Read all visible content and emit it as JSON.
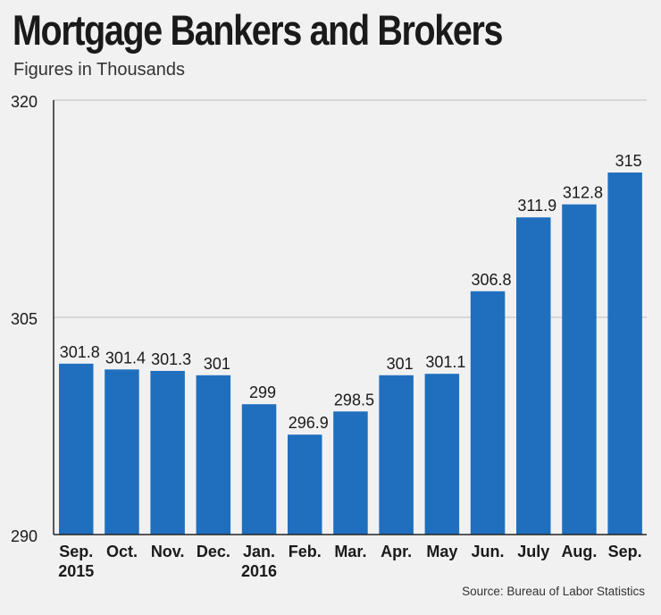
{
  "chart_data": {
    "type": "bar",
    "title": "Mortgage Bankers and Brokers",
    "subtitle": "Figures in Thousands",
    "source": "Source: Bureau of Labor Statistics",
    "xlabel": "",
    "ylabel": "",
    "categories": [
      [
        "Sep.",
        "2015"
      ],
      [
        "Oct."
      ],
      [
        "Nov."
      ],
      [
        "Dec."
      ],
      [
        "Jan.",
        "2016"
      ],
      [
        "Feb."
      ],
      [
        "Mar."
      ],
      [
        "Apr."
      ],
      [
        "May"
      ],
      [
        "Jun."
      ],
      [
        "July"
      ],
      [
        "Aug."
      ],
      [
        "Sep."
      ]
    ],
    "values": [
      301.8,
      301.4,
      301.3,
      301,
      299,
      296.9,
      298.5,
      301,
      301.1,
      306.8,
      311.9,
      312.8,
      315
    ],
    "value_labels": [
      "301.8",
      "301.4",
      "301.3",
      "301",
      "299",
      "296.9",
      "298.5",
      "301",
      "301.1",
      "306.8",
      "311.9",
      "312.8",
      "315"
    ],
    "ylim": [
      290,
      320
    ],
    "yticks": [
      290,
      305,
      320
    ],
    "grid": true,
    "colors": {
      "bar": "#1f6fbe",
      "grid": "#bdbdbd",
      "axis": "#222222",
      "text": "#1a1a1a"
    }
  }
}
